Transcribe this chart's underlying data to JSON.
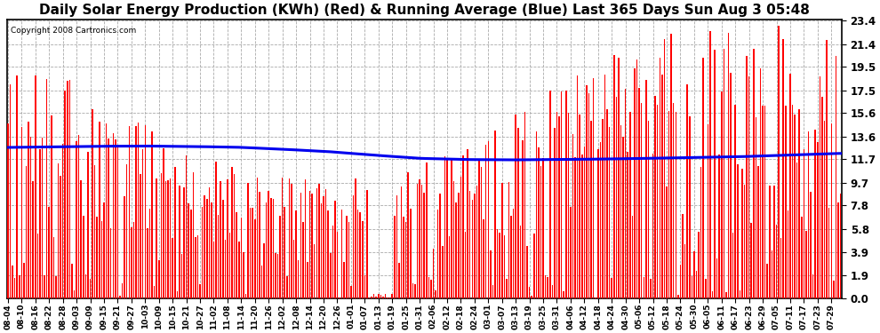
{
  "title": "Daily Solar Energy Production (KWh) (Red) & Running Average (Blue) Last 365 Days Sun Aug 3 05:48",
  "copyright": "Copyright 2008 Cartronics.com",
  "yticks": [
    0.0,
    1.9,
    3.9,
    5.8,
    7.8,
    9.7,
    11.7,
    13.6,
    15.6,
    17.5,
    19.5,
    21.4,
    23.4
  ],
  "ymax": 23.4,
  "ymin": 0.0,
  "bar_color": "#ff0000",
  "line_color": "#0000ee",
  "bg_color": "#ffffff",
  "grid_color": "#aaaaaa",
  "xtick_labels": [
    "08-04",
    "08-10",
    "08-16",
    "08-22",
    "08-28",
    "09-03",
    "09-09",
    "09-15",
    "09-21",
    "09-27",
    "10-03",
    "10-09",
    "10-15",
    "10-21",
    "10-27",
    "11-02",
    "11-08",
    "11-14",
    "11-20",
    "11-26",
    "12-02",
    "12-08",
    "12-14",
    "12-20",
    "12-26",
    "01-01",
    "01-07",
    "01-13",
    "01-19",
    "01-25",
    "01-31",
    "02-06",
    "02-12",
    "02-18",
    "02-24",
    "03-01",
    "03-07",
    "03-13",
    "03-19",
    "03-25",
    "03-31",
    "04-06",
    "04-12",
    "04-18",
    "04-24",
    "04-30",
    "05-06",
    "05-12",
    "05-18",
    "05-24",
    "05-30",
    "06-05",
    "06-11",
    "06-17",
    "06-23",
    "06-29",
    "07-05",
    "07-11",
    "07-17",
    "07-23",
    "07-29"
  ],
  "line_width": 2.2,
  "title_fontsize": 11,
  "figsize": [
    9.9,
    3.75
  ],
  "dpi": 100,
  "bar_width": 0.6,
  "blue_line_points_x": [
    0,
    20,
    40,
    60,
    80,
    100,
    120,
    140,
    160,
    180,
    200,
    220,
    240,
    260,
    280,
    300,
    320,
    340,
    364
  ],
  "blue_line_points_y": [
    12.7,
    12.75,
    12.8,
    12.82,
    12.78,
    12.72,
    12.55,
    12.35,
    12.05,
    11.78,
    11.68,
    11.65,
    11.68,
    11.72,
    11.78,
    11.85,
    11.92,
    12.05,
    12.2
  ]
}
